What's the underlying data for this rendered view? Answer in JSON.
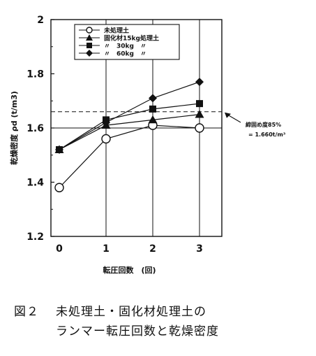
{
  "chart_data": {
    "type": "line",
    "ylabel": "乾燥密度 ρd (t/m3)",
    "xlabel": "転圧回数　(回)",
    "x": [
      0,
      1,
      2,
      3
    ],
    "x_tick_labels": [
      "0",
      "1",
      "2",
      "3"
    ],
    "xlim": [
      -0.2,
      3.5
    ],
    "ylim": [
      1.2,
      2.0
    ],
    "y_tick_labels": [
      "1.2",
      "1.4",
      "1.6",
      "1.8",
      "2"
    ],
    "y_ticks": [
      1.2,
      1.4,
      1.6,
      1.8,
      2.0
    ],
    "grid": "vertical lines at x=1,2,3 and horizontal line at y=1.6",
    "legend_position": "top-left",
    "series": [
      {
        "name": "未処理土",
        "marker": "circle-open",
        "values": [
          1.38,
          1.56,
          1.61,
          1.6
        ]
      },
      {
        "name": "固化材15kg処理土",
        "marker": "triangle-filled",
        "values": [
          1.52,
          1.61,
          1.63,
          1.65
        ]
      },
      {
        "name": "〃　30kg　〃",
        "marker": "square-filled",
        "values": [
          1.52,
          1.63,
          1.67,
          1.69
        ]
      },
      {
        "name": "〃　60kg　〃",
        "marker": "diamond-filled",
        "values": [
          1.52,
          1.62,
          1.71,
          1.77
        ]
      }
    ],
    "reference_line": {
      "y": 1.66,
      "style": "dashed",
      "label_line1": "締固め度85%",
      "label_line2": "= 1.660t/m³"
    }
  },
  "caption": {
    "label": "図２",
    "line1": "未処理土・固化材処理土の",
    "line2": "ランマー転圧回数と乾燥密度"
  }
}
